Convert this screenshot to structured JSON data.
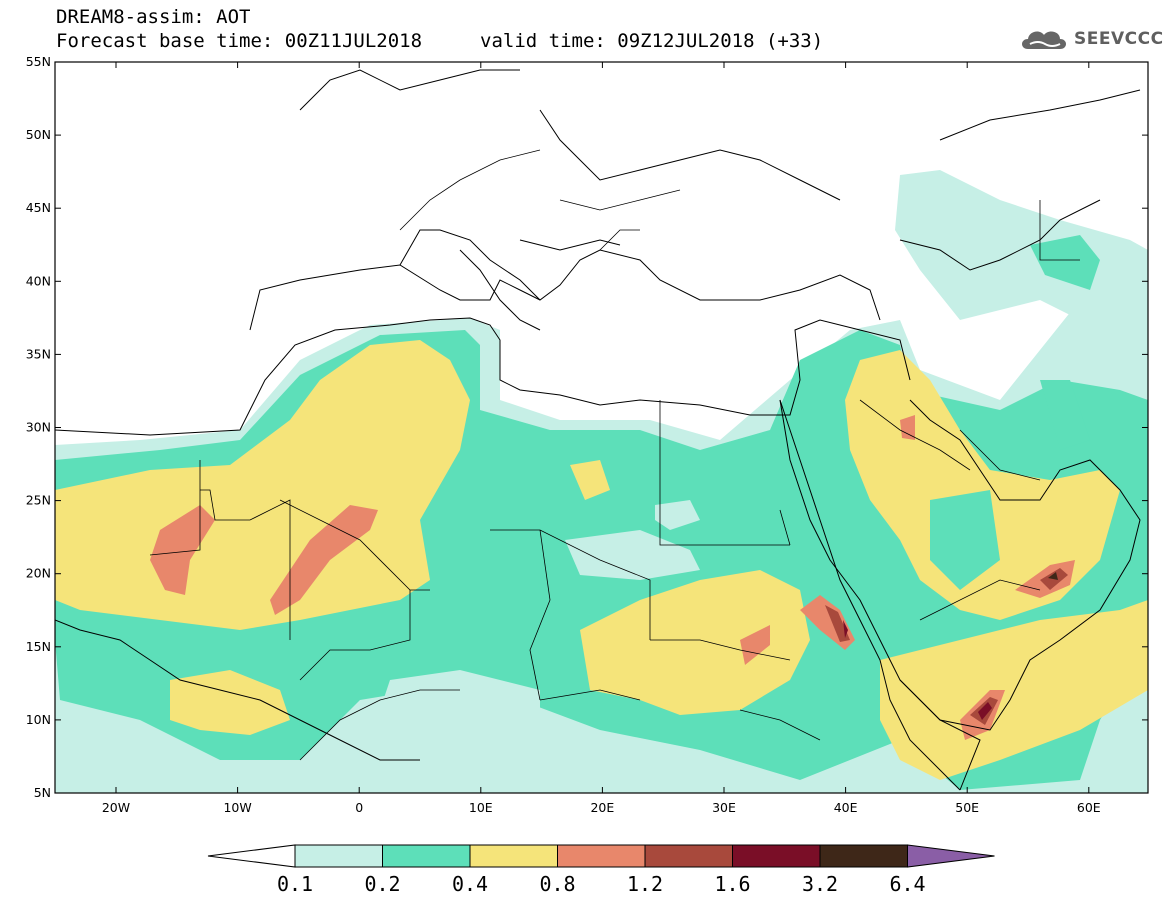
{
  "header": {
    "title_line1": "DREAM8-assim: AOT",
    "base_time": "Forecast base time: 00Z11JUL2018",
    "valid_time": "valid time: 09Z12JUL2018 (+33)",
    "logo_text": "SEEVCCC",
    "logo_icon": "cloud-icon"
  },
  "axes": {
    "lat_ticks": [
      "55N",
      "50N",
      "45N",
      "40N",
      "35N",
      "30N",
      "25N",
      "20N",
      "15N",
      "10N",
      "5N"
    ],
    "lon_ticks": [
      "20W",
      "10W",
      "0",
      "10E",
      "20E",
      "30E",
      "40E",
      "50E",
      "60E"
    ]
  },
  "colorbar": {
    "labels": [
      "0.1",
      "0.2",
      "0.4",
      "0.8",
      "1.2",
      "1.6",
      "3.2",
      "6.4"
    ],
    "colors": [
      "#ffffff",
      "#c6efe6",
      "#5ddfb9",
      "#f5e47a",
      "#e8876b",
      "#a8493c",
      "#7a0e27",
      "#3e2718",
      "#8a5ea6"
    ]
  },
  "colors": {
    "c1": "#c6efe6",
    "c2": "#5ddfb9",
    "c3": "#f5e47a",
    "c4": "#e8876b",
    "c5": "#a8493c",
    "c6": "#7a0e27",
    "c7": "#3e2718"
  }
}
